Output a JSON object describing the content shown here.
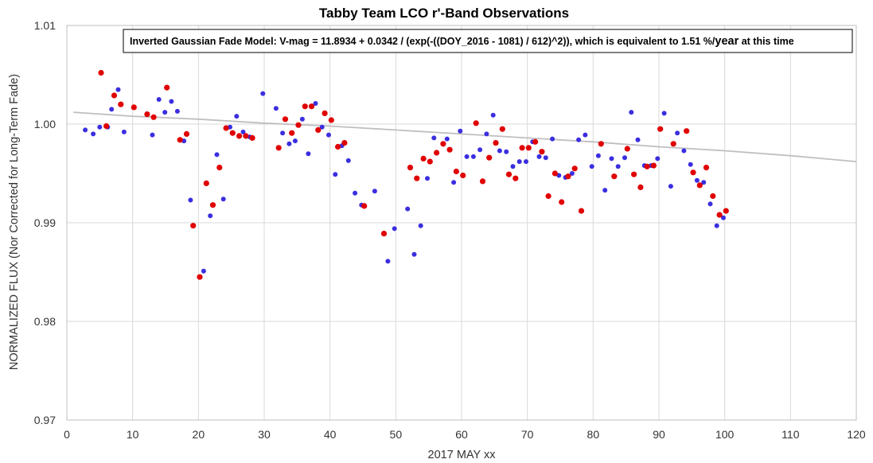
{
  "chart_data": {
    "type": "scatter",
    "title": "Tabby Team LCO r'-Band Observations",
    "xlabel": "2017 MAY xx",
    "ylabel": "NORMALIZED FLUX (Nor Corrected for Long-Term Fade)",
    "annotation": {
      "prefix": "Inverted Gaussian Fade Model:  V-mag = 11.8934 + 0.0342 / (exp(-((DOY_2016 - 1081) / 612)^2)), which is equivalent to 1.51 %/",
      "emphasis": "year",
      "suffix": " at this time"
    },
    "xlim": [
      0,
      120
    ],
    "ylim": [
      0.97,
      1.01
    ],
    "x_ticks": [
      "0",
      "10",
      "20",
      "30",
      "40",
      "50",
      "60",
      "70",
      "80",
      "90",
      "100",
      "110",
      "120"
    ],
    "y_ticks": [
      "0.97",
      "0.98",
      "0.99",
      "1.00",
      "1.01"
    ],
    "grid": true,
    "series": [
      {
        "color": "#3a2ee0",
        "points": [
          [
            2.8,
            0.9994
          ],
          [
            4.0,
            0.999
          ],
          [
            5.0,
            0.9997
          ],
          [
            6.2,
            0.9997
          ],
          [
            6.8,
            1.0015
          ],
          [
            7.8,
            1.0035
          ],
          [
            8.7,
            0.9992
          ],
          [
            13.0,
            0.9989
          ],
          [
            14.0,
            1.0025
          ],
          [
            14.9,
            1.0012
          ],
          [
            15.9,
            1.0023
          ],
          [
            16.8,
            1.0013
          ],
          [
            17.8,
            0.9983
          ],
          [
            18.8,
            0.9923
          ],
          [
            20.8,
            0.9851
          ],
          [
            21.8,
            0.9907
          ],
          [
            22.8,
            0.9969
          ],
          [
            23.8,
            0.9924
          ],
          [
            24.8,
            0.9997
          ],
          [
            25.8,
            1.0008
          ],
          [
            26.8,
            0.9992
          ],
          [
            27.8,
            0.9987
          ],
          [
            29.8,
            1.0031
          ],
          [
            31.8,
            1.0016
          ],
          [
            32.8,
            0.9991
          ],
          [
            33.8,
            0.998
          ],
          [
            34.7,
            0.9983
          ],
          [
            35.8,
            1.0005
          ],
          [
            36.7,
            0.997
          ],
          [
            37.8,
            1.0021
          ],
          [
            38.8,
            0.9997
          ],
          [
            39.8,
            0.9989
          ],
          [
            40.8,
            0.9949
          ],
          [
            41.8,
            0.9978
          ],
          [
            42.8,
            0.9963
          ],
          [
            43.8,
            0.993
          ],
          [
            44.8,
            0.9918
          ],
          [
            46.8,
            0.9932
          ],
          [
            48.8,
            0.9861
          ],
          [
            49.8,
            0.9894
          ],
          [
            51.8,
            0.9914
          ],
          [
            52.8,
            0.9868
          ],
          [
            53.8,
            0.9897
          ],
          [
            54.8,
            0.9945
          ],
          [
            55.8,
            0.9986
          ],
          [
            57.8,
            0.9985
          ],
          [
            58.8,
            0.9941
          ],
          [
            59.8,
            0.9993
          ],
          [
            60.8,
            0.9967
          ],
          [
            61.8,
            0.9967
          ],
          [
            62.8,
            0.9974
          ],
          [
            63.8,
            0.999
          ],
          [
            64.8,
            1.0009
          ],
          [
            65.8,
            0.9973
          ],
          [
            66.8,
            0.9972
          ],
          [
            67.8,
            0.9957
          ],
          [
            68.8,
            0.9962
          ],
          [
            69.8,
            0.9962
          ],
          [
            70.8,
            0.9982
          ],
          [
            71.8,
            0.9967
          ],
          [
            72.8,
            0.9966
          ],
          [
            73.8,
            0.9985
          ],
          [
            74.8,
            0.9948
          ],
          [
            75.8,
            0.9946
          ],
          [
            76.8,
            0.995
          ],
          [
            77.8,
            0.9984
          ],
          [
            78.8,
            0.9989
          ],
          [
            79.8,
            0.9957
          ],
          [
            80.8,
            0.9968
          ],
          [
            81.8,
            0.9933
          ],
          [
            82.8,
            0.9965
          ],
          [
            83.8,
            0.9957
          ],
          [
            84.8,
            0.9966
          ],
          [
            85.8,
            1.0012
          ],
          [
            86.8,
            0.9984
          ],
          [
            87.8,
            0.9958
          ],
          [
            88.8,
            0.9958
          ],
          [
            89.8,
            0.9965
          ],
          [
            90.8,
            1.0011
          ],
          [
            91.8,
            0.9937
          ],
          [
            92.8,
            0.9991
          ],
          [
            93.8,
            0.9973
          ],
          [
            94.8,
            0.9959
          ],
          [
            95.8,
            0.9943
          ],
          [
            96.8,
            0.9941
          ],
          [
            97.8,
            0.9919
          ],
          [
            98.8,
            0.9897
          ],
          [
            99.8,
            0.9905
          ]
        ]
      },
      {
        "color": "#e00000",
        "points": [
          [
            5.2,
            1.0052
          ],
          [
            6.0,
            0.9998
          ],
          [
            7.2,
            1.0029
          ],
          [
            8.2,
            1.002
          ],
          [
            10.2,
            1.0017
          ],
          [
            12.2,
            1.001
          ],
          [
            13.2,
            1.0007
          ],
          [
            15.2,
            1.0037
          ],
          [
            17.2,
            0.9984
          ],
          [
            18.2,
            0.999
          ],
          [
            19.2,
            0.9897
          ],
          [
            20.2,
            0.9845
          ],
          [
            21.2,
            0.994
          ],
          [
            22.2,
            0.9918
          ],
          [
            23.2,
            0.9956
          ],
          [
            24.2,
            0.9996
          ],
          [
            25.2,
            0.9991
          ],
          [
            26.2,
            0.9988
          ],
          [
            27.2,
            0.9988
          ],
          [
            28.2,
            0.9986
          ],
          [
            32.2,
            0.9976
          ],
          [
            33.2,
            1.0005
          ],
          [
            34.2,
            0.9991
          ],
          [
            35.2,
            0.9999
          ],
          [
            36.2,
            1.0018
          ],
          [
            37.2,
            1.0018
          ],
          [
            38.2,
            0.9994
          ],
          [
            39.2,
            1.0011
          ],
          [
            40.2,
            1.0004
          ],
          [
            41.2,
            0.9977
          ],
          [
            42.2,
            0.9981
          ],
          [
            45.2,
            0.9917
          ],
          [
            48.2,
            0.9889
          ],
          [
            52.2,
            0.9956
          ],
          [
            53.2,
            0.9945
          ],
          [
            54.2,
            0.9965
          ],
          [
            55.2,
            0.9962
          ],
          [
            56.2,
            0.9971
          ],
          [
            57.2,
            0.998
          ],
          [
            58.2,
            0.9974
          ],
          [
            59.2,
            0.9952
          ],
          [
            60.2,
            0.9948
          ],
          [
            62.2,
            1.0001
          ],
          [
            63.2,
            0.9942
          ],
          [
            64.2,
            0.9966
          ],
          [
            65.2,
            0.9981
          ],
          [
            66.2,
            0.9995
          ],
          [
            67.2,
            0.9949
          ],
          [
            68.2,
            0.9945
          ],
          [
            69.2,
            0.9976
          ],
          [
            70.2,
            0.9976
          ],
          [
            71.2,
            0.9982
          ],
          [
            72.2,
            0.9972
          ],
          [
            73.2,
            0.9927
          ],
          [
            74.2,
            0.995
          ],
          [
            75.2,
            0.9921
          ],
          [
            76.2,
            0.9947
          ],
          [
            77.2,
            0.9955
          ],
          [
            78.2,
            0.9912
          ],
          [
            81.2,
            0.998
          ],
          [
            83.2,
            0.9947
          ],
          [
            85.2,
            0.9975
          ],
          [
            86.2,
            0.9949
          ],
          [
            87.2,
            0.9936
          ],
          [
            88.2,
            0.9957
          ],
          [
            89.2,
            0.9958
          ],
          [
            90.2,
            0.9995
          ],
          [
            92.2,
            0.998
          ],
          [
            94.2,
            0.9993
          ],
          [
            95.2,
            0.9951
          ],
          [
            96.2,
            0.9938
          ],
          [
            97.2,
            0.9956
          ],
          [
            98.2,
            0.9927
          ],
          [
            99.2,
            0.9908
          ],
          [
            100.2,
            0.9912
          ]
        ]
      },
      {
        "type": "line",
        "color": "#bfbfbf",
        "points": [
          [
            1,
            1.0012
          ],
          [
            10,
            1.0008
          ],
          [
            20,
            1.0005
          ],
          [
            30,
            1.0001
          ],
          [
            40,
            0.9998
          ],
          [
            50,
            0.9994
          ],
          [
            60,
            0.999
          ],
          [
            70,
            0.9986
          ],
          [
            80,
            0.9982
          ],
          [
            90,
            0.9977
          ],
          [
            100,
            0.9973
          ],
          [
            110,
            0.9968
          ],
          [
            120,
            0.9962
          ]
        ]
      }
    ]
  }
}
